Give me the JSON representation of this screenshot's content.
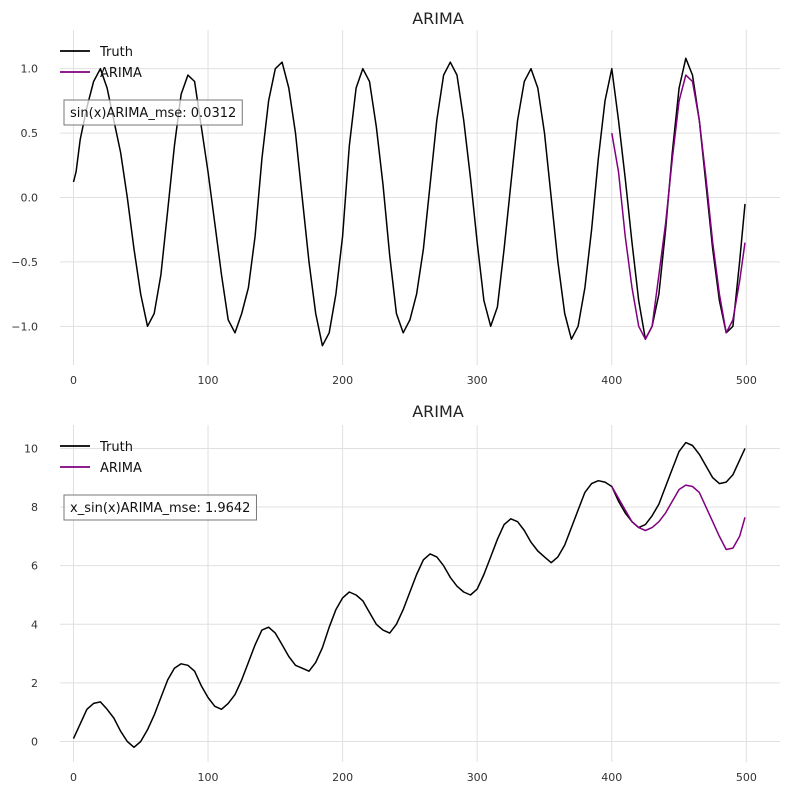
{
  "colors": {
    "truth": "#000000",
    "forecast": "#800080",
    "grid": "#e0e0e0"
  },
  "chart_data": [
    {
      "type": "line",
      "title": "ARIMA",
      "xlabel": "",
      "ylabel": "",
      "xlim": [
        -10,
        525
      ],
      "ylim": [
        -1.3,
        1.3
      ],
      "xticks": [
        0,
        100,
        200,
        300,
        400,
        500
      ],
      "yticks": [
        -1.0,
        -0.5,
        0.0,
        0.5,
        1.0
      ],
      "ytick_labels": [
        "−1.0",
        "−0.5",
        "0.0",
        "0.5",
        "1.0"
      ],
      "grid": true,
      "legend_position": "top-left",
      "annotation": "sin(x)ARIMA_mse: 0.0312",
      "series": [
        {
          "name": "Truth",
          "color": "#000000",
          "points": [
            [
              0,
              0.12
            ],
            [
              2,
              0.2
            ],
            [
              5,
              0.45
            ],
            [
              10,
              0.7
            ],
            [
              15,
              0.9
            ],
            [
              20,
              1.0
            ],
            [
              25,
              0.85
            ],
            [
              30,
              0.6
            ],
            [
              35,
              0.35
            ],
            [
              40,
              0.0
            ],
            [
              45,
              -0.4
            ],
            [
              50,
              -0.75
            ],
            [
              55,
              -1.0
            ],
            [
              60,
              -0.9
            ],
            [
              65,
              -0.6
            ],
            [
              70,
              -0.1
            ],
            [
              75,
              0.4
            ],
            [
              80,
              0.8
            ],
            [
              85,
              0.95
            ],
            [
              90,
              0.9
            ],
            [
              95,
              0.55
            ],
            [
              100,
              0.2
            ],
            [
              105,
              -0.2
            ],
            [
              110,
              -0.6
            ],
            [
              115,
              -0.95
            ],
            [
              120,
              -1.05
            ],
            [
              125,
              -0.9
            ],
            [
              130,
              -0.7
            ],
            [
              135,
              -0.3
            ],
            [
              140,
              0.3
            ],
            [
              145,
              0.75
            ],
            [
              150,
              1.0
            ],
            [
              155,
              1.05
            ],
            [
              160,
              0.85
            ],
            [
              165,
              0.5
            ],
            [
              170,
              0.0
            ],
            [
              175,
              -0.5
            ],
            [
              180,
              -0.9
            ],
            [
              185,
              -1.15
            ],
            [
              190,
              -1.05
            ],
            [
              195,
              -0.75
            ],
            [
              200,
              -0.3
            ],
            [
              205,
              0.4
            ],
            [
              210,
              0.85
            ],
            [
              215,
              1.0
            ],
            [
              220,
              0.9
            ],
            [
              225,
              0.55
            ],
            [
              230,
              0.1
            ],
            [
              235,
              -0.45
            ],
            [
              240,
              -0.9
            ],
            [
              245,
              -1.05
            ],
            [
              250,
              -0.95
            ],
            [
              255,
              -0.75
            ],
            [
              260,
              -0.4
            ],
            [
              265,
              0.1
            ],
            [
              270,
              0.6
            ],
            [
              275,
              0.95
            ],
            [
              280,
              1.05
            ],
            [
              285,
              0.95
            ],
            [
              290,
              0.6
            ],
            [
              295,
              0.15
            ],
            [
              300,
              -0.35
            ],
            [
              305,
              -0.8
            ],
            [
              310,
              -1.0
            ],
            [
              315,
              -0.85
            ],
            [
              320,
              -0.4
            ],
            [
              325,
              0.1
            ],
            [
              330,
              0.6
            ],
            [
              335,
              0.9
            ],
            [
              340,
              1.0
            ],
            [
              345,
              0.85
            ],
            [
              350,
              0.5
            ],
            [
              355,
              0.0
            ],
            [
              360,
              -0.5
            ],
            [
              365,
              -0.9
            ],
            [
              370,
              -1.1
            ],
            [
              375,
              -1.0
            ],
            [
              380,
              -0.7
            ],
            [
              385,
              -0.25
            ],
            [
              390,
              0.3
            ],
            [
              395,
              0.75
            ],
            [
              400,
              1.0
            ],
            [
              405,
              0.6
            ],
            [
              410,
              0.15
            ],
            [
              415,
              -0.35
            ],
            [
              420,
              -0.8
            ],
            [
              425,
              -1.1
            ],
            [
              430,
              -1.0
            ],
            [
              435,
              -0.75
            ],
            [
              440,
              -0.25
            ],
            [
              445,
              0.35
            ],
            [
              450,
              0.85
            ],
            [
              455,
              1.08
            ],
            [
              460,
              0.95
            ],
            [
              465,
              0.6
            ],
            [
              470,
              0.1
            ],
            [
              475,
              -0.4
            ],
            [
              480,
              -0.8
            ],
            [
              485,
              -1.05
            ],
            [
              490,
              -1.0
            ],
            [
              495,
              -0.5
            ],
            [
              499,
              -0.05
            ]
          ]
        },
        {
          "name": "ARIMA",
          "color": "#800080",
          "points": [
            [
              400,
              0.5
            ],
            [
              405,
              0.2
            ],
            [
              410,
              -0.3
            ],
            [
              415,
              -0.7
            ],
            [
              420,
              -1.0
            ],
            [
              425,
              -1.1
            ],
            [
              430,
              -1.0
            ],
            [
              435,
              -0.6
            ],
            [
              440,
              -0.2
            ],
            [
              445,
              0.3
            ],
            [
              450,
              0.75
            ],
            [
              455,
              0.95
            ],
            [
              460,
              0.9
            ],
            [
              465,
              0.6
            ],
            [
              470,
              0.15
            ],
            [
              475,
              -0.35
            ],
            [
              480,
              -0.75
            ],
            [
              485,
              -1.05
            ],
            [
              490,
              -0.95
            ],
            [
              495,
              -0.65
            ],
            [
              499,
              -0.35
            ]
          ]
        }
      ]
    },
    {
      "type": "line",
      "title": "ARIMA",
      "xlabel": "",
      "ylabel": "",
      "xlim": [
        -10,
        525
      ],
      "ylim": [
        -0.7,
        10.8
      ],
      "xticks": [
        0,
        100,
        200,
        300,
        400,
        500
      ],
      "yticks": [
        0,
        2,
        4,
        6,
        8,
        10
      ],
      "ytick_labels": [
        "0",
        "2",
        "4",
        "6",
        "8",
        "10"
      ],
      "grid": true,
      "legend_position": "top-left",
      "annotation": "x_sin(x)ARIMA_mse: 1.9642",
      "series": [
        {
          "name": "Truth",
          "color": "#000000",
          "points": [
            [
              0,
              0.1
            ],
            [
              5,
              0.6
            ],
            [
              10,
              1.1
            ],
            [
              15,
              1.3
            ],
            [
              20,
              1.35
            ],
            [
              25,
              1.1
            ],
            [
              30,
              0.8
            ],
            [
              35,
              0.35
            ],
            [
              40,
              0.0
            ],
            [
              45,
              -0.2
            ],
            [
              50,
              0.0
            ],
            [
              55,
              0.4
            ],
            [
              60,
              0.9
            ],
            [
              65,
              1.5
            ],
            [
              70,
              2.1
            ],
            [
              75,
              2.5
            ],
            [
              80,
              2.65
            ],
            [
              85,
              2.6
            ],
            [
              90,
              2.4
            ],
            [
              95,
              1.9
            ],
            [
              100,
              1.5
            ],
            [
              105,
              1.2
            ],
            [
              110,
              1.1
            ],
            [
              115,
              1.3
            ],
            [
              120,
              1.6
            ],
            [
              125,
              2.1
            ],
            [
              130,
              2.7
            ],
            [
              135,
              3.3
            ],
            [
              140,
              3.8
            ],
            [
              145,
              3.9
            ],
            [
              150,
              3.7
            ],
            [
              155,
              3.3
            ],
            [
              160,
              2.9
            ],
            [
              165,
              2.6
            ],
            [
              170,
              2.5
            ],
            [
              175,
              2.4
            ],
            [
              180,
              2.7
            ],
            [
              185,
              3.2
            ],
            [
              190,
              3.9
            ],
            [
              195,
              4.5
            ],
            [
              200,
              4.9
            ],
            [
              205,
              5.1
            ],
            [
              210,
              5.0
            ],
            [
              215,
              4.8
            ],
            [
              220,
              4.4
            ],
            [
              225,
              4.0
            ],
            [
              230,
              3.8
            ],
            [
              235,
              3.7
            ],
            [
              240,
              4.0
            ],
            [
              245,
              4.5
            ],
            [
              250,
              5.1
            ],
            [
              255,
              5.7
            ],
            [
              260,
              6.2
            ],
            [
              265,
              6.4
            ],
            [
              270,
              6.3
            ],
            [
              275,
              6.0
            ],
            [
              280,
              5.6
            ],
            [
              285,
              5.3
            ],
            [
              290,
              5.1
            ],
            [
              295,
              5.0
            ],
            [
              300,
              5.2
            ],
            [
              305,
              5.7
            ],
            [
              310,
              6.3
            ],
            [
              315,
              6.9
            ],
            [
              320,
              7.4
            ],
            [
              325,
              7.6
            ],
            [
              330,
              7.5
            ],
            [
              335,
              7.2
            ],
            [
              340,
              6.8
            ],
            [
              345,
              6.5
            ],
            [
              350,
              6.3
            ],
            [
              355,
              6.1
            ],
            [
              360,
              6.3
            ],
            [
              365,
              6.7
            ],
            [
              370,
              7.3
            ],
            [
              375,
              7.9
            ],
            [
              380,
              8.5
            ],
            [
              385,
              8.8
            ],
            [
              390,
              8.9
            ],
            [
              395,
              8.85
            ],
            [
              400,
              8.7
            ],
            [
              405,
              8.2
            ],
            [
              410,
              7.8
            ],
            [
              415,
              7.5
            ],
            [
              420,
              7.3
            ],
            [
              425,
              7.4
            ],
            [
              430,
              7.7
            ],
            [
              435,
              8.1
            ],
            [
              440,
              8.7
            ],
            [
              445,
              9.3
            ],
            [
              450,
              9.9
            ],
            [
              455,
              10.2
            ],
            [
              460,
              10.1
            ],
            [
              465,
              9.8
            ],
            [
              470,
              9.4
            ],
            [
              475,
              9.0
            ],
            [
              480,
              8.8
            ],
            [
              485,
              8.85
            ],
            [
              490,
              9.1
            ],
            [
              495,
              9.6
            ],
            [
              499,
              10.0
            ]
          ]
        },
        {
          "name": "ARIMA",
          "color": "#800080",
          "points": [
            [
              400,
              8.7
            ],
            [
              405,
              8.3
            ],
            [
              410,
              7.9
            ],
            [
              415,
              7.5
            ],
            [
              420,
              7.3
            ],
            [
              425,
              7.2
            ],
            [
              430,
              7.3
            ],
            [
              435,
              7.5
            ],
            [
              440,
              7.8
            ],
            [
              445,
              8.2
            ],
            [
              450,
              8.6
            ],
            [
              455,
              8.75
            ],
            [
              460,
              8.7
            ],
            [
              465,
              8.5
            ],
            [
              470,
              8.0
            ],
            [
              475,
              7.5
            ],
            [
              480,
              7.0
            ],
            [
              485,
              6.55
            ],
            [
              490,
              6.6
            ],
            [
              495,
              7.0
            ],
            [
              499,
              7.65
            ]
          ]
        }
      ]
    }
  ]
}
